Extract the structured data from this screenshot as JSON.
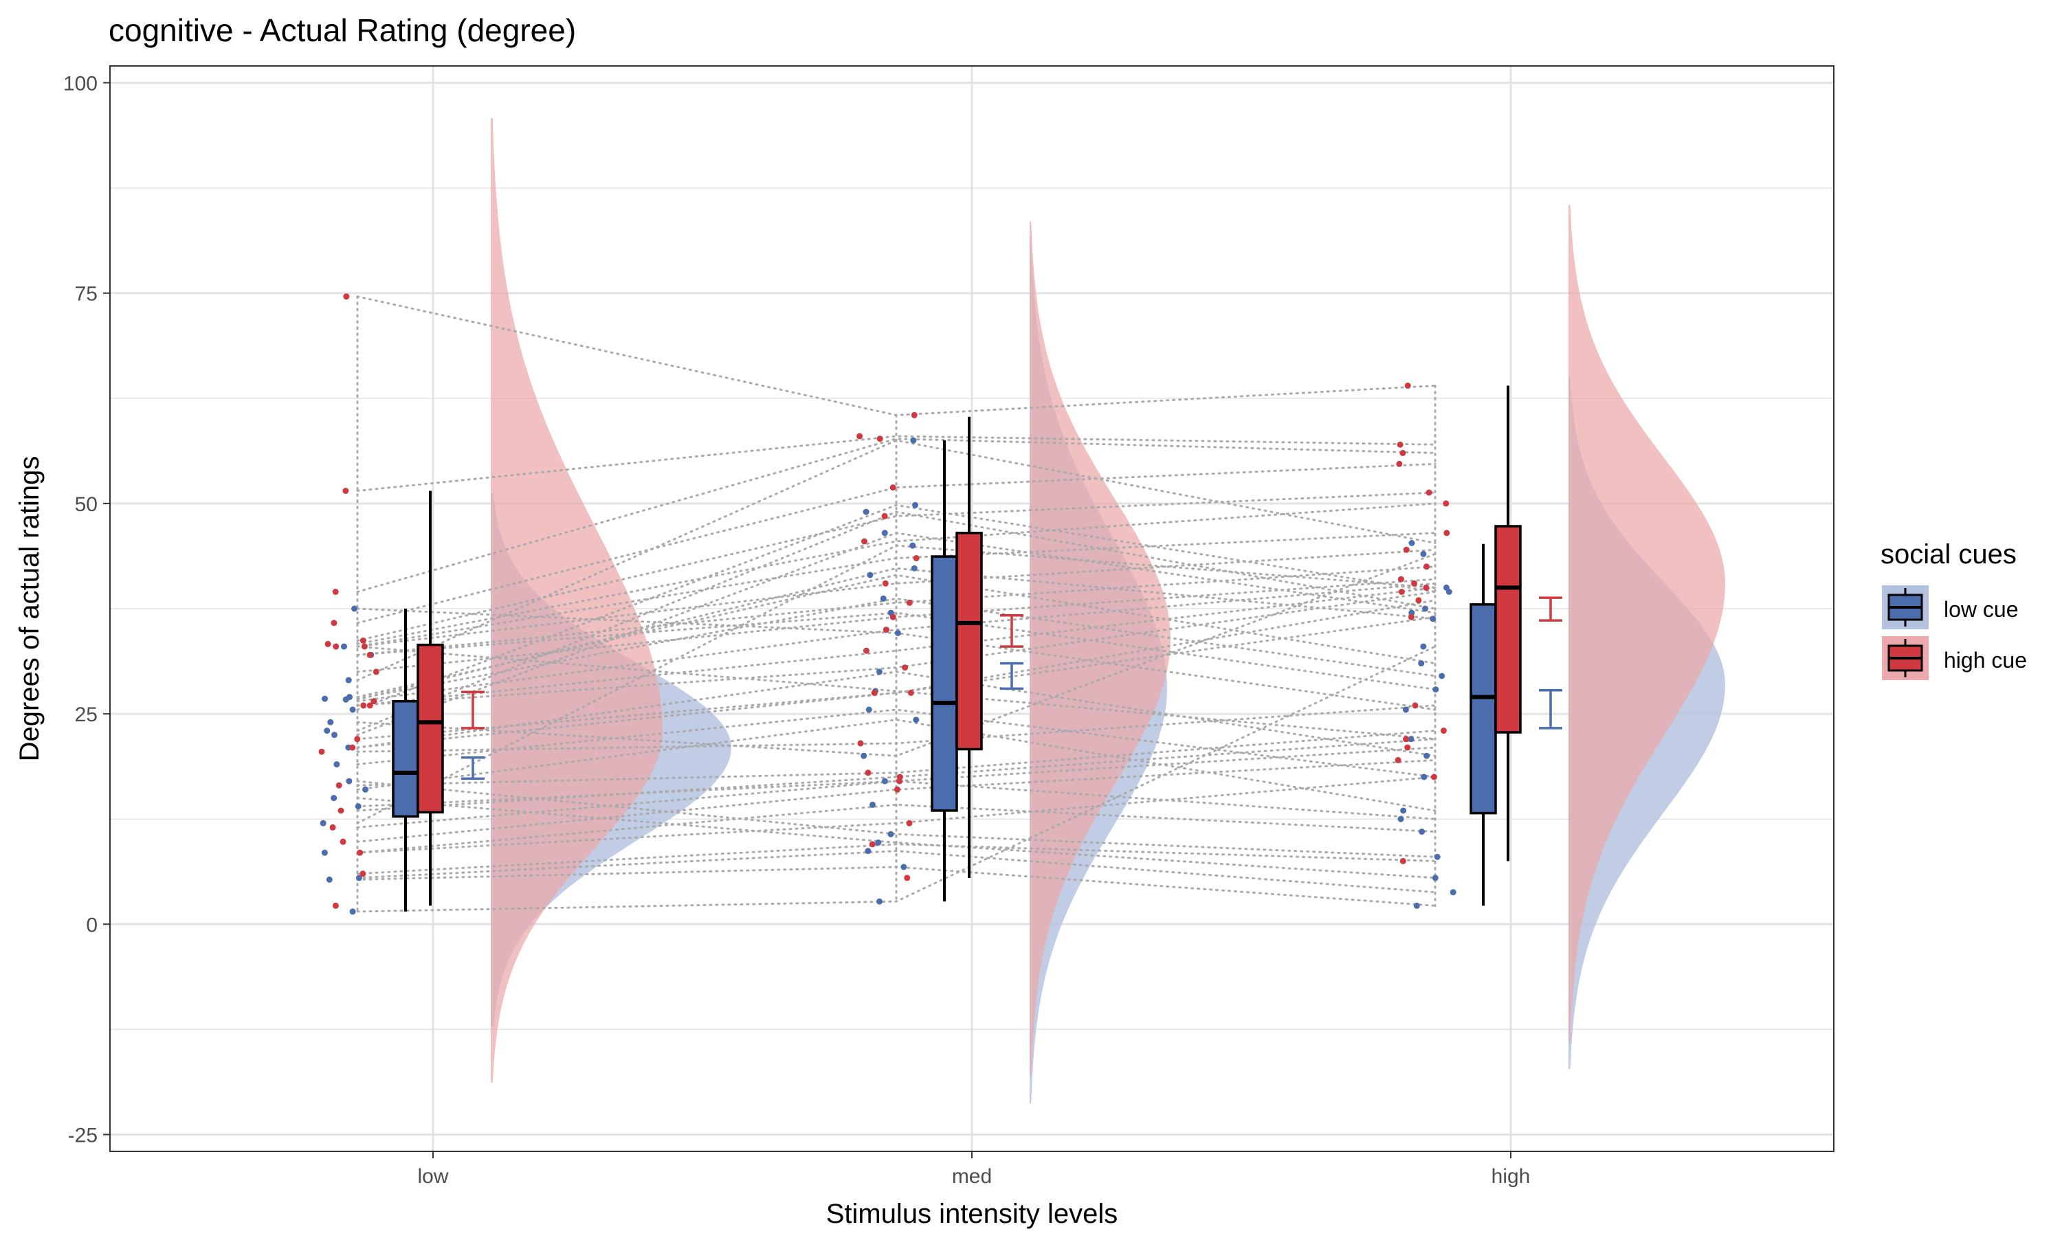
{
  "chart_data": {
    "type": "raincloud",
    "title": "cognitive  - Actual Rating (degree)",
    "xlabel": "Stimulus intensity levels",
    "ylabel": "Degrees of actual ratings",
    "categories": [
      "low",
      "med",
      "high"
    ],
    "ylim": [
      -27,
      102
    ],
    "yticks": [
      -25,
      0,
      25,
      50,
      75,
      100
    ],
    "grid": true,
    "legend": {
      "title": "social cues",
      "position": "right",
      "entries": [
        "low cue",
        "high cue"
      ]
    },
    "colors": {
      "low cue": "#4B6DAE",
      "high cue": "#D0393F",
      "low_cloud": "#B2C2DF",
      "high_cloud": "#EBA9AB",
      "lines": "#AAAAAA",
      "grid": "#E3E3E3",
      "median": "#000000"
    },
    "series": [
      {
        "name": "low cue",
        "box": [
          {
            "category": "low",
            "lower_whisker": 1.5,
            "q1": 12.8,
            "median": 18.0,
            "q3": 26.5,
            "upper_whisker": 37.5
          },
          {
            "category": "med",
            "lower_whisker": 2.7,
            "q1": 13.5,
            "median": 26.3,
            "q3": 43.7,
            "upper_whisker": 57.5
          },
          {
            "category": "high",
            "lower_whisker": 2.2,
            "q1": 13.2,
            "median": 27.0,
            "q3": 38.0,
            "upper_whisker": 45.2
          }
        ],
        "error_bar": [
          {
            "category": "low",
            "low": 17.3,
            "high": 19.8
          },
          {
            "category": "med",
            "low": 28.0,
            "high": 31.0
          },
          {
            "category": "high",
            "low": 23.3,
            "high": 27.8
          }
        ],
        "density": [
          {
            "category": "low",
            "min": -12.2,
            "max": 51.2,
            "mode": 21.0
          },
          {
            "category": "med",
            "min": -21.3,
            "max": 81.8,
            "mode": 28.0
          },
          {
            "category": "high",
            "min": -17.2,
            "max": 65.0,
            "mode": 28.5
          }
        ],
        "points": [
          {
            "category": "low",
            "values": [
              29.0,
              25.5,
              23.0,
              22.5,
              26.7,
              27.0,
              26.8,
              32.0,
              37.5,
              33.0,
              19.0,
              16.0,
              14.0,
              8.5,
              17.0,
              15.0,
              5.5,
              5.3,
              1.5,
              21.0,
              24.0,
              12.0
            ]
          },
          {
            "category": "med",
            "values": [
              57.5,
              49.8,
              49.0,
              46.5,
              42.3,
              41.5,
              38.7,
              37.0,
              34.6,
              27.7,
              25.5,
              24.3,
              17.0,
              14.2,
              10.7,
              9.7,
              8.7,
              6.8,
              2.7,
              30.0,
              20.0,
              45.0
            ]
          },
          {
            "category": "high",
            "values": [
              45.3,
              39.5,
              37.5,
              37.0,
              36.3,
              31.0,
              29.5,
              27.9,
              25.5,
              22.0,
              17.5,
              13.5,
              12.5,
              11.0,
              8.0,
              5.5,
              3.8,
              2.2,
              33.0,
              20.0,
              44.0,
              40.0
            ]
          }
        ]
      },
      {
        "name": "high cue",
        "box": [
          {
            "category": "low",
            "lower_whisker": 2.2,
            "q1": 13.3,
            "median": 24.0,
            "q3": 33.2,
            "upper_whisker": 51.5
          },
          {
            "category": "med",
            "lower_whisker": 5.5,
            "q1": 20.8,
            "median": 35.8,
            "q3": 46.5,
            "upper_whisker": 60.3
          },
          {
            "category": "high",
            "lower_whisker": 7.5,
            "q1": 22.8,
            "median": 40.0,
            "q3": 47.3,
            "upper_whisker": 64.0
          }
        ],
        "error_bar": [
          {
            "category": "low",
            "low": 23.3,
            "high": 27.6
          },
          {
            "category": "med",
            "low": 33.0,
            "high": 36.7
          },
          {
            "category": "high",
            "low": 36.1,
            "high": 38.8
          }
        ],
        "density": [
          {
            "category": "low",
            "min": -18.8,
            "max": 95.8,
            "mode": 23.0
          },
          {
            "category": "med",
            "min": -18.0,
            "max": 83.5,
            "mode": 34.0
          },
          {
            "category": "high",
            "min": -14.0,
            "max": 85.5,
            "mode": 40.5
          }
        ],
        "points": [
          {
            "category": "low",
            "values": [
              74.6,
              51.5,
              39.5,
              35.8,
              33.7,
              33.3,
              33.0,
              33.0,
              32.0,
              30.0,
              26.5,
              26.0,
              26.0,
              22.0,
              21.0,
              20.5,
              16.5,
              13.5,
              11.5,
              9.8,
              8.5,
              6.0,
              2.2
            ]
          },
          {
            "category": "med",
            "values": [
              60.5,
              58.0,
              57.7,
              51.9,
              48.5,
              45.5,
              43.5,
              40.5,
              38.2,
              36.5,
              35.0,
              32.5,
              30.5,
              27.5,
              27.5,
              21.5,
              18.0,
              17.5,
              17.0,
              16.0,
              12.0,
              9.5,
              5.5
            ]
          },
          {
            "category": "high",
            "values": [
              64.0,
              57.0,
              56.0,
              54.7,
              51.3,
              50.0,
              46.5,
              44.5,
              42.5,
              41.0,
              40.5,
              40.0,
              39.5,
              38.5,
              36.5,
              26.0,
              23.0,
              22.0,
              21.0,
              19.5,
              17.5,
              7.5
            ]
          }
        ]
      }
    ]
  }
}
